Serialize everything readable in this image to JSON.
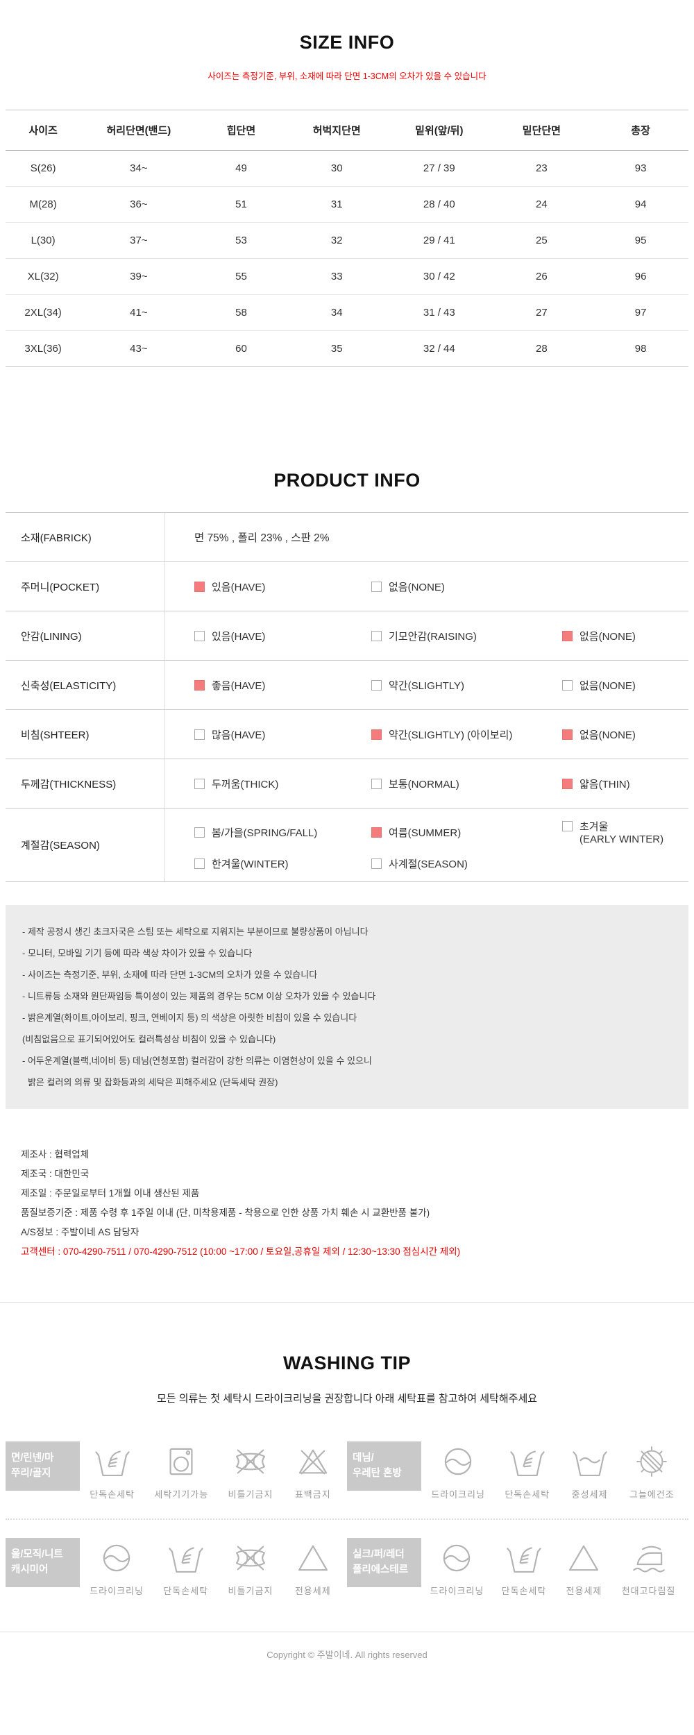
{
  "size_info": {
    "title": "SIZE INFO",
    "subtitle": "사이즈는 측정기준, 부위, 소재에 따라 단면 1-3CM의 오차가 있을 수 있습니다",
    "table": {
      "headers": [
        "사이즈",
        "허리단면(밴드)",
        "힙단면",
        "허벅지단면",
        "밑위(앞/뒤)",
        "밑단단면",
        "총장"
      ],
      "rows": [
        [
          "S(26)",
          "34~",
          "49",
          "30",
          "27 / 39",
          "23",
          "93"
        ],
        [
          "M(28)",
          "36~",
          "51",
          "31",
          "28 / 40",
          "24",
          "94"
        ],
        [
          "L(30)",
          "37~",
          "53",
          "32",
          "29 / 41",
          "25",
          "95"
        ],
        [
          "XL(32)",
          "39~",
          "55",
          "33",
          "30 / 42",
          "26",
          "96"
        ],
        [
          "2XL(34)",
          "41~",
          "58",
          "34",
          "31 / 43",
          "27",
          "97"
        ],
        [
          "3XL(36)",
          "43~",
          "60",
          "35",
          "32 / 44",
          "28",
          "98"
        ]
      ]
    }
  },
  "product_info": {
    "title": "PRODUCT INFO",
    "rows": [
      {
        "label": "소재(FABRICK)",
        "text": "면 75% , 폴리 23% , 스판 2%"
      },
      {
        "label": "주머니(POCKET)",
        "options": [
          {
            "label": "있음(HAVE)",
            "checked": true
          },
          {
            "label": "없음(NONE)",
            "checked": false
          }
        ]
      },
      {
        "label": "안감(LINING)",
        "options": [
          {
            "label": "있음(HAVE)",
            "checked": false
          },
          {
            "label": "기모안감(RAISING)",
            "checked": false
          },
          {
            "label": "없음(NONE)",
            "checked": true
          }
        ]
      },
      {
        "label": "신축성(ELASTICITY)",
        "options": [
          {
            "label": "좋음(HAVE)",
            "checked": true
          },
          {
            "label": "약간(SLIGHTLY)",
            "checked": false
          },
          {
            "label": "없음(NONE)",
            "checked": false
          }
        ]
      },
      {
        "label": "비침(SHTEER)",
        "options": [
          {
            "label": "많음(HAVE)",
            "checked": false
          },
          {
            "label": "약간(SLIGHTLY) (아이보리)",
            "checked": true
          },
          {
            "label": "없음(NONE)",
            "checked": true
          }
        ]
      },
      {
        "label": "두께감(THICKNESS)",
        "options": [
          {
            "label": "두꺼움(THICK)",
            "checked": false
          },
          {
            "label": "보통(NORMAL)",
            "checked": false
          },
          {
            "label": "얇음(THIN)",
            "checked": true
          }
        ]
      },
      {
        "label": "계절감(SEASON)",
        "options": [
          {
            "label": "봄/가을(SPRING/FALL)",
            "checked": false
          },
          {
            "label": "여름(SUMMER)",
            "checked": true
          },
          {
            "label": "초겨울",
            "label2": "(EARLY WINTER)",
            "checked": false
          },
          {
            "label": "한겨울(WINTER)",
            "checked": false
          },
          {
            "label": "사계절(SEASON)",
            "checked": false
          }
        ]
      }
    ],
    "notices": [
      "- 제작 공정시 생긴 초크자국은 스팀 또는 세탁으로 지워지는 부분이므로 불량상품이 아닙니다",
      "- 모니터, 모바일 기기 등에 따라 색상 차이가 있을 수 있습니다",
      "- 사이즈는 측정기준, 부위, 소재에 따라 단면 1-3CM의 오차가 있을 수 있습니다",
      "- 니트류등 소재와 원단짜임등 특이성이 있는 제품의 경우는 5CM 이상 오차가 있을 수 있습니다",
      "- 밝은계열(화이트,아이보리, 핑크, 연베이지 등) 의 색상은 아릿한 비침이 있을 수 있습니다",
      "(비침없음으로 표기되어있어도 컬러특성상 비침이 있을 수 있습니다)",
      "- 어두운계열(블랙,네이비 등) 데님(연청포함) 컬러감이 강한 의류는 이염현상이 있을 수 있으니",
      "밝은 컬러의 의류 및 잡화등과의 세탁은 피해주세요 (단독세탁 권장)"
    ],
    "maker_info": [
      "제조사 : 협력업체",
      "제조국 : 대한민국",
      "제조일 : 주문일로부터 1개월 이내 생산된 제품",
      "품질보증기준 : 제품 수령 후 1주일 이내 (단, 미착용제품 - 착용으로 인한 상품 가치 훼손 시 교환반품 불가)",
      "A/S정보 : 주발이네 AS 담당자"
    ],
    "customer_center": "고객센터 : 070-4290-7511 / 070-4290-7512 (10:00 ~17:00 / 토요일,공휴일 제외 / 12:30~13:30 점심시간 제외)"
  },
  "washing_tip": {
    "title": "WASHING TIP",
    "subtitle": "모든 의류는 첫 세탁시 드라이크리닝을 권장합니다 아래 세탁표를 참고하여 세탁해주세요",
    "groups": [
      {
        "category": "면/린넨/마",
        "category2": "쭈리/골지",
        "items": [
          {
            "icon": "hand-wash",
            "caption": "단독손세탁"
          },
          {
            "icon": "machine-wash",
            "caption": "세탁기기가능"
          },
          {
            "icon": "no-wring",
            "caption": "비틀기금지"
          },
          {
            "icon": "no-bleach",
            "caption": "표백금지"
          }
        ]
      },
      {
        "category": "데님/",
        "category2": "우레탄 혼방",
        "items": [
          {
            "icon": "dry-clean",
            "caption": "드라이크리닝"
          },
          {
            "icon": "hand-wash",
            "caption": "단독손세탁"
          },
          {
            "icon": "neutral-detergent",
            "caption": "중성세제"
          },
          {
            "icon": "shade-dry",
            "caption": "그늘에건조"
          }
        ]
      },
      {
        "category": "울/모직/니트",
        "category2": "캐시미어",
        "items": [
          {
            "icon": "dry-clean",
            "caption": "드라이크리닝"
          },
          {
            "icon": "hand-wash",
            "caption": "단독손세탁"
          },
          {
            "icon": "no-wring",
            "caption": "비틀기금지"
          },
          {
            "icon": "special-detergent",
            "caption": "전용세제"
          }
        ]
      },
      {
        "category": "실크/퍼/레더",
        "category2": "폴리에스테르",
        "items": [
          {
            "icon": "dry-clean",
            "caption": "드라이크리닝"
          },
          {
            "icon": "hand-wash",
            "caption": "단독손세탁"
          },
          {
            "icon": "special-detergent",
            "caption": "전용세제"
          },
          {
            "icon": "iron-cloth",
            "caption": "천대고다림질"
          }
        ]
      }
    ]
  },
  "footer": {
    "copyright": "Copyright © 주발이네. All rights reserved"
  },
  "colors": {
    "accent_red": "#f40000",
    "customer_red": "#e60000",
    "check_fill": "#f47c7c",
    "category_box_bg": "#c9c9c9",
    "icon_gray": "#b3b3b3"
  }
}
